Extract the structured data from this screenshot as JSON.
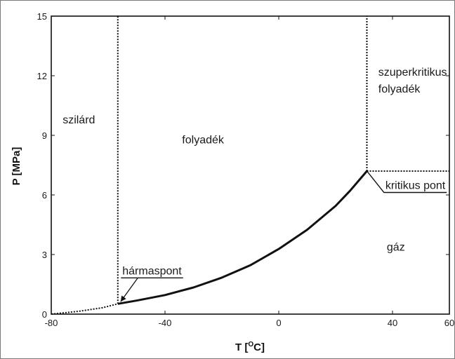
{
  "chart_data": {
    "type": "line",
    "title": "",
    "xlabel": "T [°C]",
    "ylabel": "P [MPa]",
    "xlim": [
      -80,
      60
    ],
    "ylim": [
      0,
      15
    ],
    "xticks": [
      -80,
      -40,
      0,
      40,
      60
    ],
    "xtick_labels": [
      "-80",
      "-40",
      "0",
      "40",
      "60"
    ],
    "yticks": [
      0,
      3,
      6,
      9,
      12,
      15
    ],
    "ytick_labels": [
      "0",
      "3",
      "6",
      "9",
      "12",
      "15"
    ],
    "grid": false,
    "series": [
      {
        "style": "dotted",
        "x": [
          -80,
          -70,
          -62,
          -56.6
        ],
        "y": [
          0.0,
          0.15,
          0.32,
          0.52
        ]
      },
      {
        "style": "solid",
        "x": [
          -56.6,
          -50,
          -40,
          -30,
          -20,
          -10,
          0,
          10,
          20,
          25,
          31
        ],
        "y": [
          0.52,
          0.68,
          0.96,
          1.34,
          1.84,
          2.46,
          3.28,
          4.25,
          5.45,
          6.2,
          7.2
        ]
      },
      {
        "style": "dotted",
        "x": [
          -56.6,
          -56.6
        ],
        "y": [
          0.52,
          15
        ]
      },
      {
        "style": "dotted",
        "x": [
          31,
          31
        ],
        "y": [
          7.2,
          15
        ]
      },
      {
        "style": "dotted",
        "x": [
          31,
          60
        ],
        "y": [
          7.2,
          7.2
        ]
      }
    ],
    "regions": [
      {
        "label": "szilárd",
        "x": -76,
        "y": 9.6
      },
      {
        "label": "folyadék",
        "x": -34,
        "y": 8.6
      },
      {
        "label": "szuperkritikus\nfolyadék",
        "x": 35,
        "y": 12.0
      },
      {
        "label": "gáz",
        "x": 38,
        "y": 3.2
      }
    ],
    "annotations": [
      {
        "label": "kritikus pont",
        "point": [
          31,
          7.2
        ],
        "text_x": 37,
        "text_y": 6.3
      },
      {
        "label": "hármaspont",
        "point": [
          -56.6,
          0.52
        ],
        "text_x": -55,
        "text_y": 2.0
      }
    ]
  }
}
